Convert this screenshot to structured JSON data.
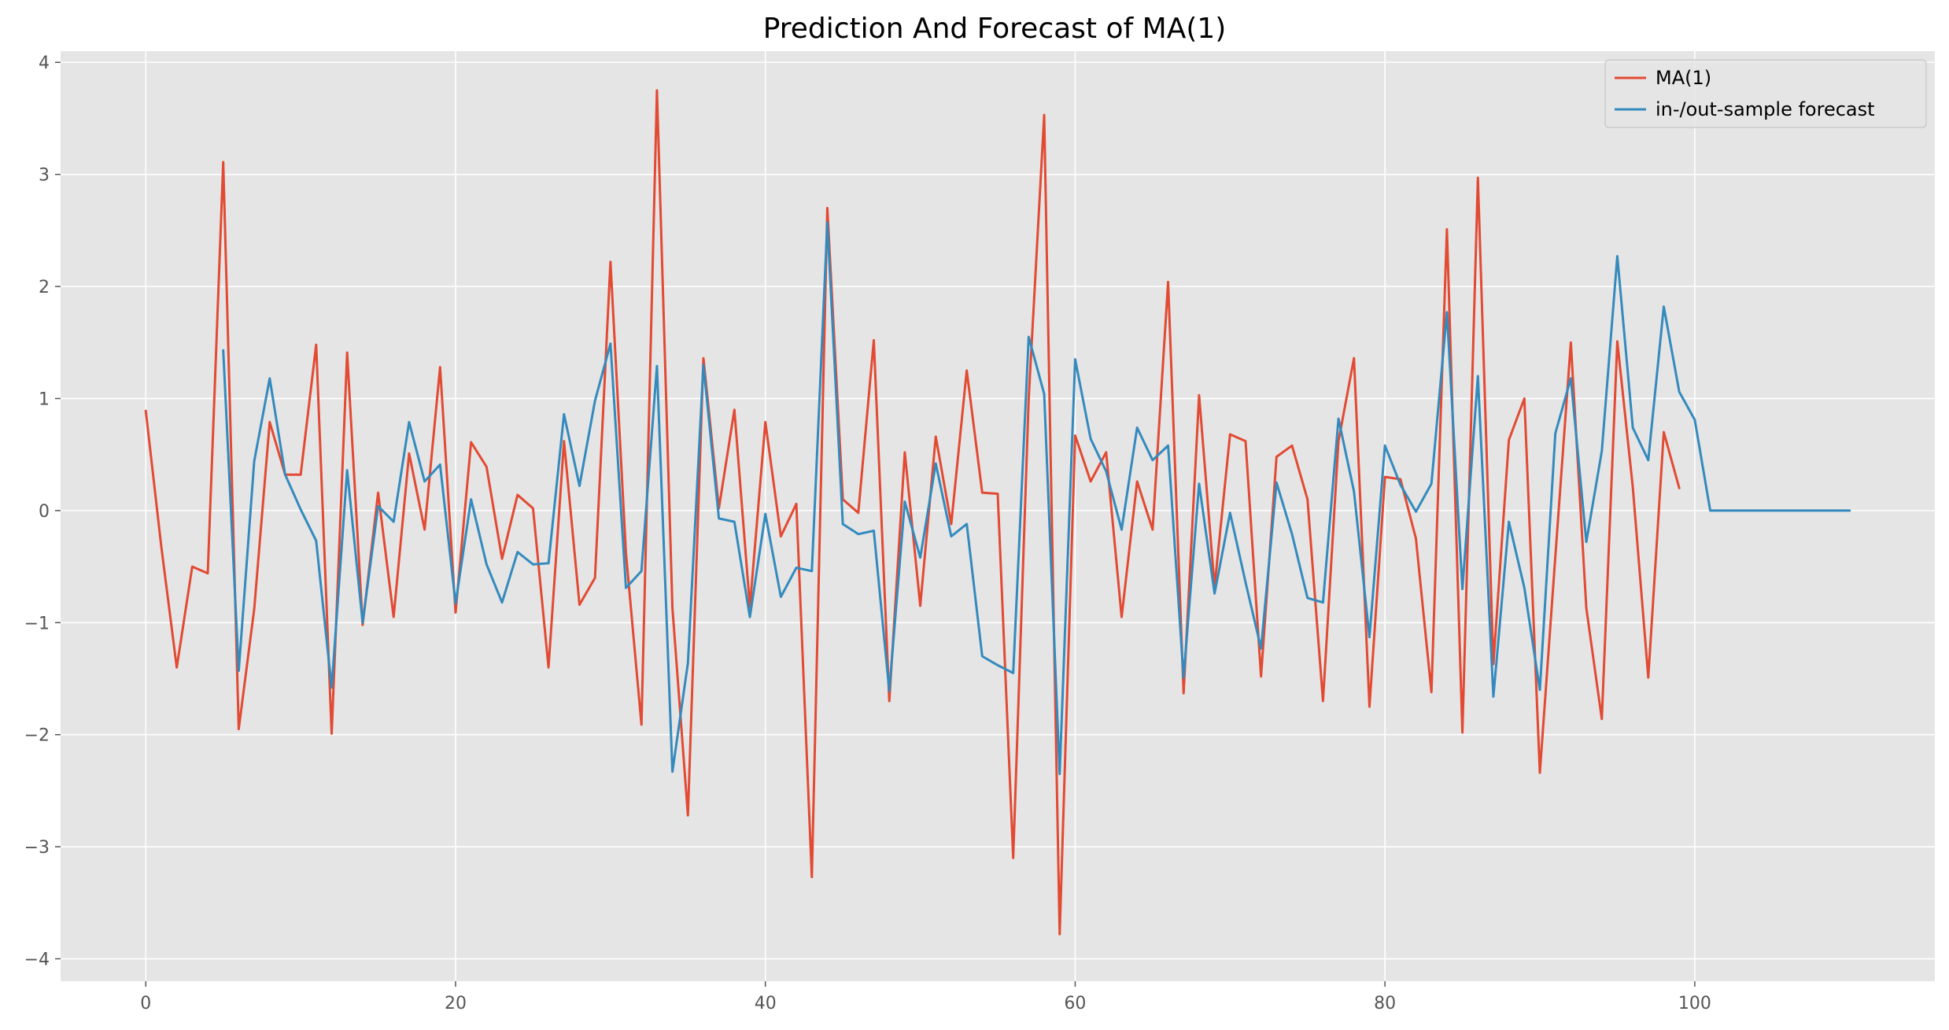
{
  "chart_data": {
    "type": "line",
    "title": "Prediction And Forecast of MA(1)",
    "xlabel": "",
    "ylabel": "",
    "xlim": [
      -5.5,
      115.5
    ],
    "ylim": [
      -4.2,
      4.1
    ],
    "xticks": [
      0,
      20,
      40,
      60,
      80,
      100
    ],
    "xtick_labels": [
      "0",
      "20",
      "40",
      "60",
      "80",
      "100"
    ],
    "yticks": [
      -4,
      -3,
      -2,
      -1,
      0,
      1,
      2,
      3,
      4
    ],
    "ytick_labels": [
      "−4",
      "−3",
      "−2",
      "−1",
      "0",
      "1",
      "2",
      "3",
      "4"
    ],
    "grid": true,
    "legend_position": "top-right",
    "background": "#e5e5e5",
    "series": [
      {
        "name": "MA(1)",
        "color": "#e24a33",
        "x_start": 0,
        "values": [
          0.89,
          -0.32,
          -1.4,
          -0.5,
          -0.56,
          3.11,
          -1.95,
          -0.88,
          0.79,
          0.32,
          0.32,
          1.48,
          -1.99,
          1.41,
          -1.02,
          0.16,
          -0.95,
          0.51,
          -0.17,
          1.28,
          -0.91,
          0.61,
          0.39,
          -0.43,
          0.14,
          0.02,
          -1.4,
          0.62,
          -0.84,
          -0.6,
          2.22,
          -0.38,
          -1.91,
          3.75,
          -0.87,
          -2.72,
          1.36,
          0.02,
          0.9,
          -0.86,
          0.79,
          -0.23,
          0.06,
          -3.27,
          2.7,
          0.1,
          -0.02,
          1.52,
          -1.7,
          0.52,
          -0.85,
          0.66,
          -0.12,
          1.25,
          0.16,
          0.15,
          -3.1,
          1.0,
          3.53,
          -3.78,
          0.67,
          0.26,
          0.52,
          -0.95,
          0.26,
          -0.17,
          2.04,
          -1.63,
          1.03,
          -0.68,
          0.68,
          0.62,
          -1.48,
          0.48,
          0.58,
          0.1,
          -1.7,
          0.62,
          1.36,
          -1.75,
          0.3,
          0.28,
          -0.25,
          -1.62,
          2.51,
          -1.98,
          2.97,
          -1.37,
          0.63,
          1.0,
          -2.34,
          -0.41,
          1.5,
          -0.87,
          -1.86,
          1.51,
          0.21,
          -1.49,
          0.7,
          0.2
        ]
      },
      {
        "name": "in-/out-sample forecast",
        "color": "#348abd",
        "x_start": 5,
        "values": [
          1.43,
          -1.43,
          0.44,
          1.18,
          0.32,
          0.01,
          -0.27,
          -1.58,
          0.36,
          -1.0,
          0.04,
          -0.1,
          0.79,
          0.26,
          0.41,
          -0.83,
          0.1,
          -0.48,
          -0.82,
          -0.37,
          -0.48,
          -0.47,
          0.86,
          0.22,
          0.98,
          1.49,
          -0.69,
          -0.54,
          1.29,
          -2.33,
          -1.36,
          1.3,
          -0.07,
          -0.1,
          -0.95,
          -0.03,
          -0.77,
          -0.51,
          -0.54,
          2.57,
          -0.12,
          -0.21,
          -0.18,
          -1.61,
          0.08,
          -0.42,
          0.42,
          -0.23,
          -0.12,
          -1.3,
          -1.38,
          -1.45,
          1.55,
          1.04,
          -2.35,
          1.35,
          0.64,
          0.35,
          -0.17,
          0.74,
          0.45,
          0.58,
          -1.49,
          0.24,
          -0.74,
          -0.02,
          -0.64,
          -1.23,
          0.25,
          -0.21,
          -0.78,
          -0.82,
          0.82,
          0.17,
          -1.13,
          0.58,
          0.23,
          -0.01,
          0.24,
          1.77,
          -0.7,
          1.2,
          -1.66,
          -0.1,
          -0.69,
          -1.6,
          0.69,
          1.18,
          -0.28,
          0.53,
          2.27,
          0.74,
          0.45,
          1.82,
          1.06,
          0.81,
          0.0,
          0.0,
          0.0,
          0.0,
          0.0,
          0.0,
          0.0,
          0.0,
          0.0,
          0.0
        ]
      }
    ]
  }
}
